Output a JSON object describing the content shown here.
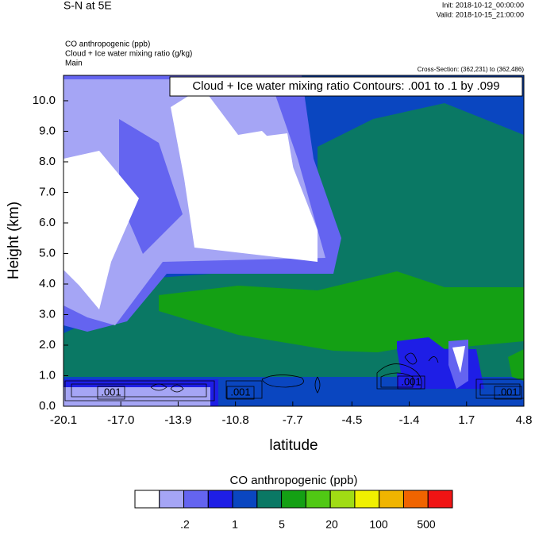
{
  "chart_data": {
    "type": "contour",
    "title": "S-N at 5E",
    "init": "Init: 2018-10-12_00:00:00",
    "valid": "Valid: 2018-10-15_21:00:00",
    "fields": [
      "CO anthropogenic   (ppb)",
      "Cloud + Ice water mixing ratio   (g/kg)",
      "Main"
    ],
    "cross_section": "Cross-Section: (362,231) to (362,486)",
    "contour_info": "Cloud + Ice water mixing ratio Contours: .001 to .1 by .099",
    "ylabel": "Height (km)",
    "xlabel": "latitude",
    "xlim": [
      -20.1,
      4.8
    ],
    "xticks": [
      -20.1,
      {
        "value": -17,
        "label": "-17.0"
      },
      -13.9,
      -10.8,
      -7.7,
      -4.5,
      -1.4,
      1.7,
      4.8
    ],
    "ylim": [
      0,
      10.83
    ],
    "yticks": [
      {
        "value": 0,
        "label": "0.0"
      },
      {
        "value": 1,
        "label": "1.0"
      },
      {
        "value": 2,
        "label": "2.0"
      },
      {
        "value": 3,
        "label": "3.0"
      },
      {
        "value": 4,
        "label": "4.0"
      },
      {
        "value": 5,
        "label": "5.0"
      },
      {
        "value": 6,
        "label": "6.0"
      },
      {
        "value": 7,
        "label": "7.0"
      },
      {
        "value": 8,
        "label": "8.0"
      },
      {
        "value": 9,
        "label": "9.0"
      },
      {
        "value": 10,
        "label": "10.0"
      }
    ],
    "contour_labels": [
      ".001",
      ".001",
      ".001",
      ".001"
    ],
    "colorbar": {
      "title": "CO anthropogenic  (ppb)",
      "colors": [
        "#ffffff",
        "#a5a5f5",
        "#6464f0",
        "#1e1ee6",
        "#0a46c0",
        "#0a7864",
        "#14a014",
        "#50c814",
        "#a0dc14",
        "#f0f000",
        "#f0b400",
        "#f06400",
        "#f01414"
      ],
      "ticks": [
        {
          "value": 0.2,
          "label": ".2"
        },
        1,
        5,
        20,
        100,
        500
      ]
    }
  }
}
